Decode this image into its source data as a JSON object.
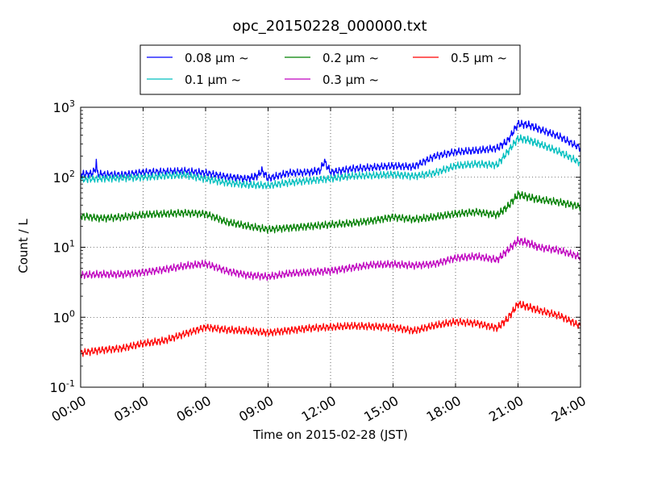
{
  "chart_data": {
    "type": "line",
    "title": "opc_20150228_000000.txt",
    "xlabel": "Time on 2015-02-28 (JST)",
    "ylabel": "Count / L",
    "xlim": [
      0,
      24
    ],
    "ylim": [
      0.1,
      1000
    ],
    "y_scale": "log",
    "grid": true,
    "legend_position": "top",
    "x_ticks": [
      0,
      3,
      6,
      9,
      12,
      15,
      18,
      21,
      24
    ],
    "x_tick_labels": [
      "00:00",
      "03:00",
      "06:00",
      "09:00",
      "12:00",
      "15:00",
      "18:00",
      "21:00",
      "24:00"
    ],
    "y_ticks": [
      0.1,
      1,
      10,
      100,
      1000
    ],
    "y_tick_labels": [
      {
        "base": "10",
        "exp": "-1"
      },
      {
        "base": "10",
        "exp": "0"
      },
      {
        "base": "10",
        "exp": "1"
      },
      {
        "base": "10",
        "exp": "2"
      },
      {
        "base": "10",
        "exp": "3"
      }
    ],
    "series": [
      {
        "name": "0.08 μm ~",
        "color": "#0000ff",
        "x": [
          0,
          0.5,
          0.7,
          0.75,
          0.8,
          1,
          2,
          3,
          4,
          5,
          6,
          7,
          8,
          8.5,
          8.7,
          9,
          10,
          11,
          11.5,
          11.7,
          12,
          13,
          14,
          15,
          16,
          17,
          18,
          19,
          20,
          20.5,
          21,
          21.5,
          22,
          23,
          24
        ],
        "y": [
          110,
          112,
          125,
          175,
          112,
          110,
          108,
          118,
          120,
          122,
          115,
          102,
          95,
          105,
          125,
          96,
          115,
          118,
          125,
          170,
          118,
          132,
          138,
          145,
          142,
          200,
          230,
          240,
          260,
          330,
          580,
          560,
          490,
          380,
          260
        ]
      },
      {
        "name": "0.1 μm ~",
        "color": "#00bfbf",
        "x": [
          0,
          1,
          2,
          3,
          4,
          5,
          6,
          7,
          8,
          9,
          10,
          11,
          12,
          13,
          14,
          15,
          16,
          17,
          18,
          19,
          20,
          20.5,
          21,
          21.5,
          22,
          23,
          24
        ],
        "y": [
          93,
          96,
          98,
          100,
          104,
          108,
          95,
          84,
          78,
          76,
          84,
          90,
          96,
          104,
          106,
          110,
          104,
          115,
          145,
          155,
          150,
          230,
          360,
          340,
          300,
          230,
          160
        ]
      },
      {
        "name": "0.2 μm ~",
        "color": "#008000",
        "x": [
          0,
          1,
          2,
          3,
          4,
          5,
          6,
          7,
          8,
          9,
          10,
          11,
          12,
          13,
          14,
          15,
          16,
          17,
          18,
          19,
          20,
          20.5,
          21,
          21.5,
          22,
          23,
          24
        ],
        "y": [
          28,
          26,
          27,
          29,
          30,
          31,
          30,
          23,
          20,
          18,
          19,
          20,
          21,
          22,
          24,
          27,
          25,
          27,
          30,
          32,
          29,
          38,
          57,
          52,
          48,
          44,
          38
        ]
      },
      {
        "name": "0.3 μm ~",
        "color": "#bf00bf",
        "x": [
          0,
          1,
          2,
          3,
          4,
          5,
          6,
          7,
          8,
          9,
          10,
          11,
          12,
          13,
          14,
          15,
          16,
          17,
          18,
          19,
          20,
          20.5,
          21,
          21.5,
          22,
          23,
          24
        ],
        "y": [
          4.0,
          4.1,
          4.1,
          4.4,
          4.8,
          5.4,
          5.8,
          4.6,
          4.0,
          3.8,
          4.2,
          4.4,
          4.6,
          5.1,
          5.6,
          5.7,
          5.5,
          5.8,
          7.0,
          7.4,
          6.6,
          9.0,
          12.5,
          11.5,
          10.0,
          9.0,
          7.2
        ]
      },
      {
        "name": "0.5 μm ~",
        "color": "#ff0000",
        "x": [
          0,
          1,
          2,
          3,
          4,
          5,
          6,
          7,
          8,
          9,
          10,
          11,
          12,
          13,
          14,
          15,
          16,
          17,
          18,
          19,
          20,
          20.5,
          21,
          21.5,
          22,
          23,
          24
        ],
        "y": [
          0.31,
          0.34,
          0.36,
          0.42,
          0.46,
          0.58,
          0.72,
          0.66,
          0.64,
          0.6,
          0.65,
          0.7,
          0.72,
          0.75,
          0.74,
          0.72,
          0.64,
          0.76,
          0.86,
          0.82,
          0.7,
          0.95,
          1.55,
          1.4,
          1.25,
          1.05,
          0.75
        ]
      }
    ]
  }
}
